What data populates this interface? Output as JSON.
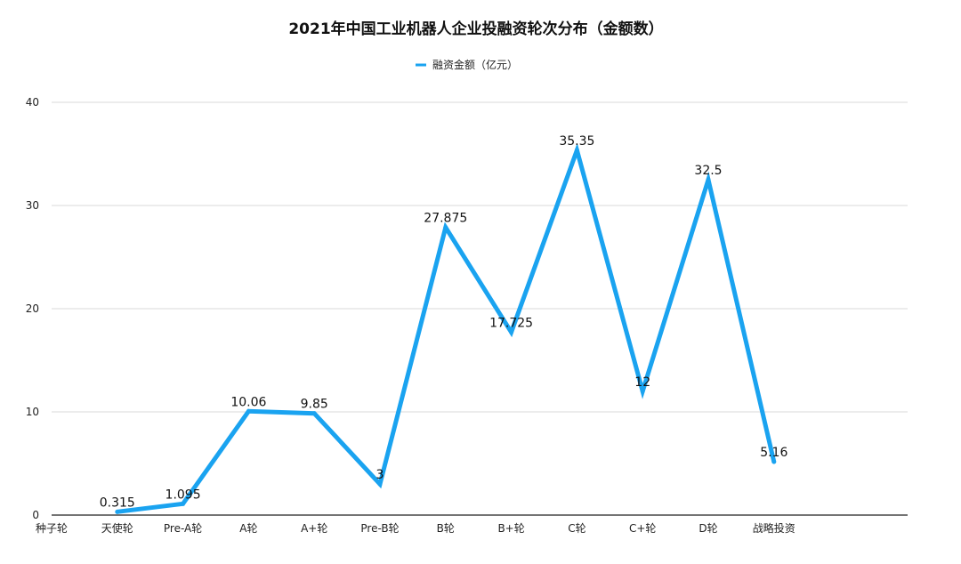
{
  "chart_data": {
    "type": "line",
    "title": "2021年中国工业机器人企业投融资轮次分布（金额数）",
    "legend": "top-center",
    "grid": true,
    "categories": [
      "种子轮",
      "天使轮",
      "Pre-A轮",
      "A轮",
      "A+轮",
      "Pre-B轮",
      "B轮",
      "B+轮",
      "C轮",
      "C+轮",
      "D轮",
      "战略投资"
    ],
    "series": [
      {
        "name": "融资金额（亿元）",
        "color": "#1aa3f0",
        "values": [
          null,
          0.315,
          1.095,
          10.06,
          9.85,
          3,
          27.875,
          17.725,
          35.35,
          12,
          32.5,
          5.16
        ],
        "labels": [
          "",
          "0.315",
          "1.095",
          "10.06",
          "9.85",
          "3",
          "27.875",
          "17.725",
          "35.35",
          "12",
          "32.5",
          "5.16"
        ]
      }
    ],
    "yticks": [
      "0",
      "10",
      "20",
      "30",
      "40"
    ],
    "ylim": [
      0,
      40
    ],
    "xlabel": "",
    "ylabel": ""
  }
}
